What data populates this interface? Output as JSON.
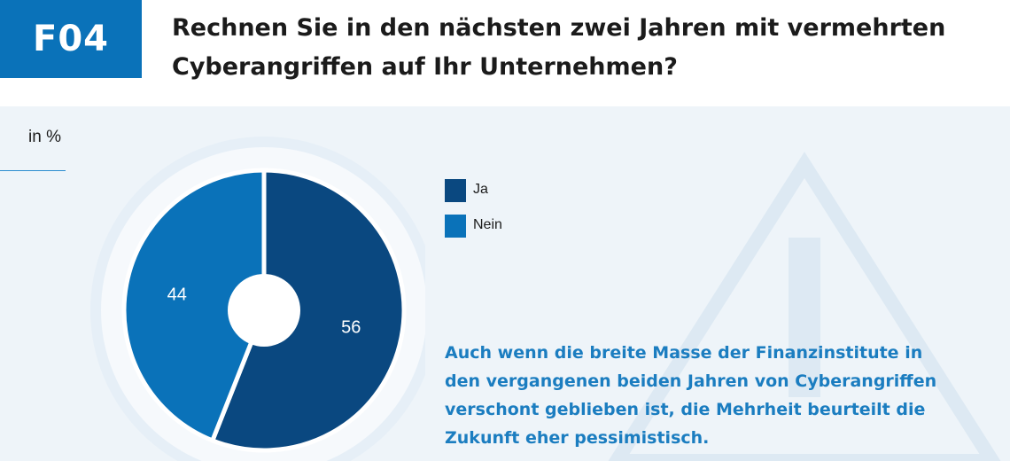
{
  "header": {
    "badge": "F04",
    "question": "Rechnen Sie in den nächsten zwei Jahren mit vermehrten\nCyberangriffen auf Ihr Unternehmen?"
  },
  "unit_label": "in %",
  "chart_data": {
    "type": "pie",
    "variant": "donut",
    "categories": [
      "Ja",
      "Nein"
    ],
    "values": [
      56,
      44
    ],
    "colors": [
      "#0a4880",
      "#0a72b9"
    ],
    "legend_placement": "right",
    "data_labels": [
      "56",
      "44"
    ]
  },
  "legend": [
    {
      "label": "Ja",
      "color": "#0a4880"
    },
    {
      "label": "Nein",
      "color": "#0a72b9"
    }
  ],
  "note": "Auch wenn die breite Masse der Finanzinstitute in den vergangenen beiden Jahren von Cyberangriffen verschont geblieben ist, die Mehrheit beurteilt die Zukunft eher pessimistisch.",
  "colors": {
    "badge": "#0a72b9",
    "panel_background": "#eef4f9",
    "note_text": "#1b7dc0"
  },
  "background_icon": "warning-triangle-icon"
}
